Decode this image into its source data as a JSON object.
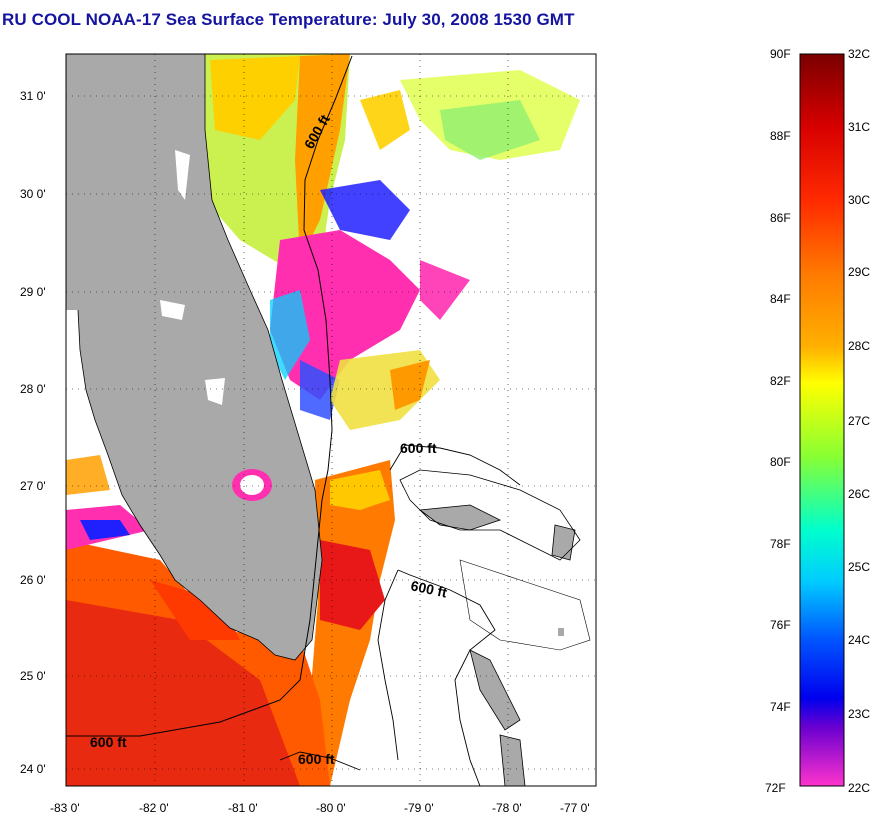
{
  "title": "RU COOL  NOAA-17  Sea Surface Temperature:  July 30, 2008 1530 GMT",
  "map": {
    "lat_ticks": [
      "31 0'",
      "30 0'",
      "29 0'",
      "28 0'",
      "27 0'",
      "26 0'",
      "25 0'",
      "24 0'"
    ],
    "lon_ticks": [
      "-83 0'",
      "-82 0'",
      "-81 0'",
      "-80 0'",
      "-79 0'",
      "-78 0'",
      "-77 0'"
    ],
    "contour_labels": [
      "600 ft",
      "600 ft",
      "600 ft",
      "600 ft",
      "600 ft"
    ],
    "colors": {
      "land": "#a9a9a9",
      "cloud": "#ffffff",
      "frame": "#000000"
    }
  },
  "colorbar": {
    "fahrenheit_labels": [
      "90F",
      "88F",
      "86F",
      "84F",
      "82F",
      "80F",
      "78F",
      "76F",
      "74F",
      "72F"
    ],
    "celsius_labels": [
      "32C",
      "31C",
      "30C",
      "29C",
      "28C",
      "27C",
      "26C",
      "25C",
      "24C",
      "23C",
      "22C"
    ],
    "gradient_colors": [
      "#7a0000",
      "#ff0000",
      "#ff6600",
      "#ffaa00",
      "#ffff00",
      "#66ff33",
      "#00ffff",
      "#0066ff",
      "#0000ff",
      "#7a00cc",
      "#ff33cc"
    ]
  }
}
